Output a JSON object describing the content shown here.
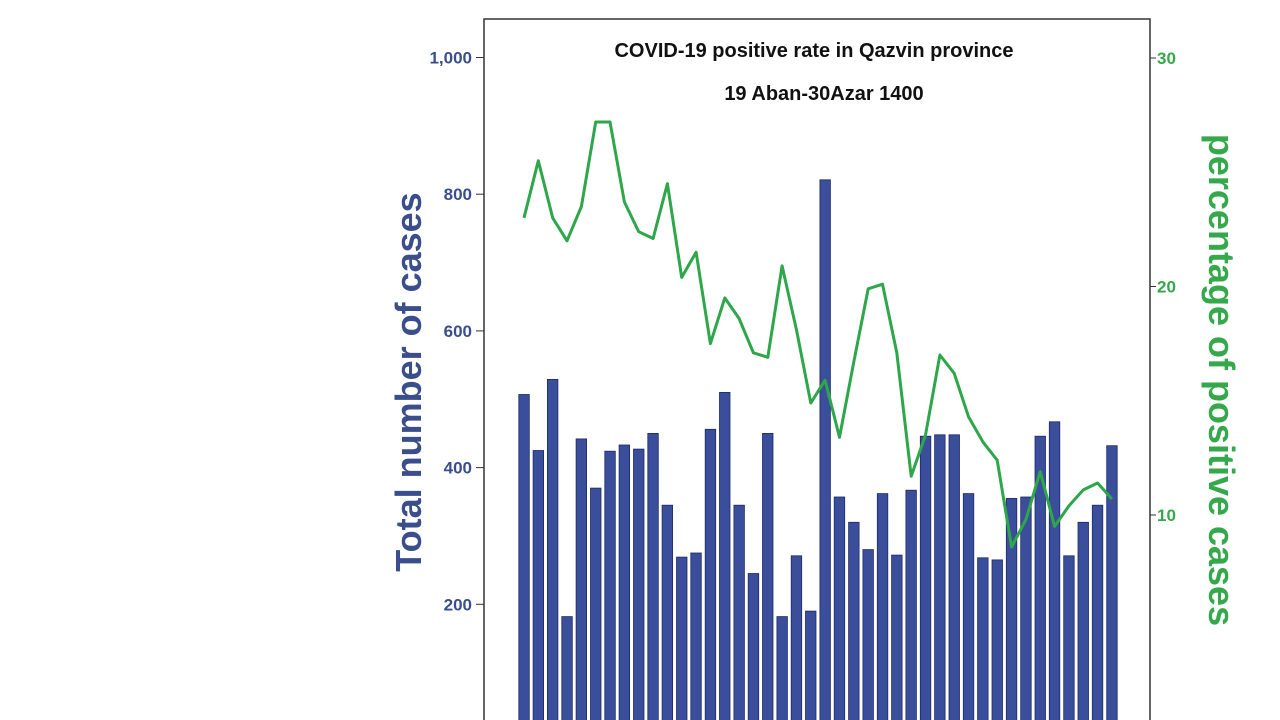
{
  "chart_data": {
    "type": "bar+line",
    "title": "COVID-19 positive rate in Qazvin province",
    "subtitle": "19 Aban-30Azar 1400",
    "ylabel_left": "Total number of cases",
    "ylabel_right": "percentage of positive cases",
    "left_axis": {
      "min": 0,
      "max": 1000,
      "ticks": [
        200,
        400,
        600,
        800,
        1000
      ],
      "tick_labels": [
        "200",
        "400",
        "600",
        "800",
        "1,000"
      ]
    },
    "right_axis": {
      "min": 0,
      "max": 30,
      "ticks": [
        10,
        20,
        30
      ],
      "tick_labels": [
        "10",
        "20",
        "30"
      ]
    },
    "series": [
      {
        "kind": "bar",
        "axis": "left",
        "values": [
          507,
          425,
          529,
          182,
          442,
          370,
          424,
          433,
          427,
          450,
          345,
          269,
          275,
          456,
          510,
          345,
          245,
          450,
          182,
          271,
          190,
          821,
          357,
          320,
          280,
          362,
          272,
          367,
          446,
          448,
          448,
          362,
          268,
          265,
          355,
          357,
          446,
          467,
          271,
          320,
          345,
          432
        ]
      },
      {
        "kind": "line",
        "axis": "right",
        "values": [
          23.0,
          25.5,
          23.0,
          22.0,
          23.5,
          27.2,
          27.2,
          23.7,
          22.4,
          22.1,
          24.5,
          20.4,
          21.5,
          17.5,
          19.5,
          18.6,
          17.1,
          16.9,
          20.9,
          18.1,
          14.9,
          15.9,
          13.4,
          16.7,
          19.9,
          20.1,
          17.1,
          11.7,
          13.5,
          17.0,
          16.2,
          14.3,
          13.2,
          12.4,
          8.6,
          9.8,
          11.9,
          9.5,
          10.4,
          11.1,
          11.4,
          10.7
        ]
      }
    ],
    "colors": {
      "bar": "#3a4e9c",
      "bar_edge": "#1d2a66",
      "line": "#2ea64a",
      "left_axis_text": "#3a4e8c",
      "right_axis_text": "#35a84b"
    },
    "grid": false
  }
}
